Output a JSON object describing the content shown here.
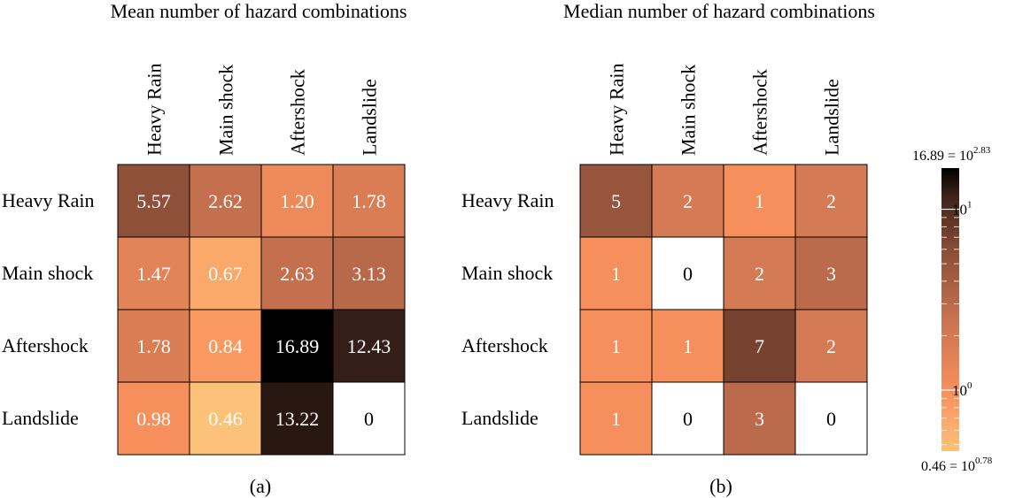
{
  "chart_data": [
    {
      "type": "heatmap",
      "title": "Mean number of hazard combinations",
      "panel_label": "(a)",
      "rows": [
        "Heavy Rain",
        "Main shock",
        "Aftershock",
        "Landslide"
      ],
      "columns": [
        "Heavy Rain",
        "Main shock",
        "Aftershock",
        "Landslide"
      ],
      "values": [
        [
          5.57,
          2.62,
          1.2,
          1.78
        ],
        [
          1.47,
          0.67,
          2.63,
          3.13
        ],
        [
          1.78,
          0.84,
          16.89,
          12.43
        ],
        [
          0.98,
          0.46,
          13.22,
          0
        ]
      ],
      "labels": [
        [
          "5.57",
          "2.62",
          "1.20",
          "1.78"
        ],
        [
          "1.47",
          "0.67",
          "2.63",
          "3.13"
        ],
        [
          "1.78",
          "0.84",
          "16.89",
          "12.43"
        ],
        [
          "0.98",
          "0.46",
          "13.22",
          "0"
        ]
      ]
    },
    {
      "type": "heatmap",
      "title": "Median number of hazard combinations",
      "panel_label": "(b)",
      "rows": [
        "Heavy Rain",
        "Main shock",
        "Aftershock",
        "Landslide"
      ],
      "columns": [
        "Heavy Rain",
        "Main shock",
        "Aftershock",
        "Landslide"
      ],
      "values": [
        [
          5,
          2,
          1,
          2
        ],
        [
          1,
          0,
          2,
          3
        ],
        [
          1,
          1,
          7,
          2
        ],
        [
          1,
          0,
          3,
          0
        ]
      ],
      "labels": [
        [
          "5",
          "2",
          "1",
          "2"
        ],
        [
          "1",
          "0",
          "2",
          "3"
        ],
        [
          "1",
          "1",
          "7",
          "2"
        ],
        [
          "1",
          "0",
          "3",
          "0"
        ]
      ]
    }
  ],
  "colorbar": {
    "scale": "log",
    "min": 0.46,
    "max": 16.89,
    "top_label": "16.89 = 10",
    "top_exp": "2.83",
    "bottom_label": "0.46 = 10",
    "bottom_exp": "0.78",
    "tick_1_base": "10",
    "tick_1_exp": "1",
    "tick_0_base": "10",
    "tick_0_exp": "0",
    "colors": [
      "#fdc27a",
      "#f9915d",
      "#cd7552",
      "#8c4f38",
      "#3d231b",
      "#000000"
    ]
  }
}
